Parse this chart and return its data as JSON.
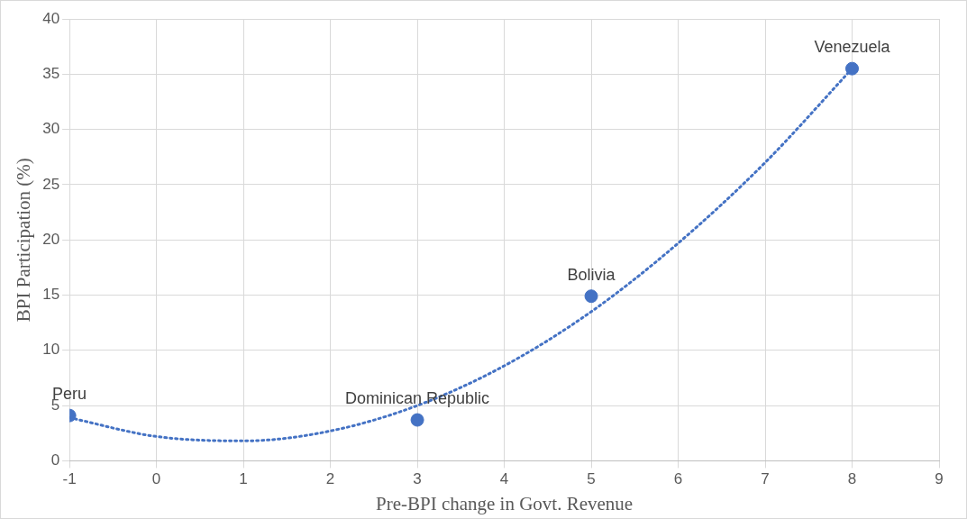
{
  "chart_data": {
    "type": "scatter",
    "xlabel": "Pre-BPI change in Govt. Revenue",
    "ylabel": "BPI Participation (%)",
    "series": [
      {
        "color": "#4472c4",
        "x": [
          -1,
          3,
          5,
          8
        ],
        "values": [
          4.1,
          3.7,
          14.9,
          35.5
        ],
        "marker": "circle"
      },
      {
        "type": "line",
        "color": "#4472c4",
        "x": [
          -1,
          0,
          1,
          2,
          3,
          4,
          5,
          6,
          7,
          8
        ],
        "values": [
          3.9,
          2.2,
          1.8,
          2.7,
          5.0,
          8.6,
          13.5,
          19.7,
          27.0,
          35.5
        ],
        "marker": "none",
        "line_style": "dotted"
      }
    ],
    "annotations": [
      {
        "text": "Peru",
        "x": -1,
        "y": 4.1
      },
      {
        "text": "Dominican Republic",
        "x": 3,
        "y": 3.7
      },
      {
        "text": "Bolivia",
        "x": 5,
        "y": 14.9
      },
      {
        "text": "Venezuela",
        "x": 8,
        "y": 35.5
      }
    ],
    "xlim": [
      -1,
      9
    ],
    "xticks": [
      -1,
      0,
      1,
      2,
      3,
      4,
      5,
      6,
      7,
      8,
      9
    ],
    "ylim": [
      0,
      40
    ],
    "yticks": [
      0,
      5,
      10,
      15,
      20,
      25,
      30,
      35,
      40
    ],
    "grid": true,
    "legend": false
  }
}
